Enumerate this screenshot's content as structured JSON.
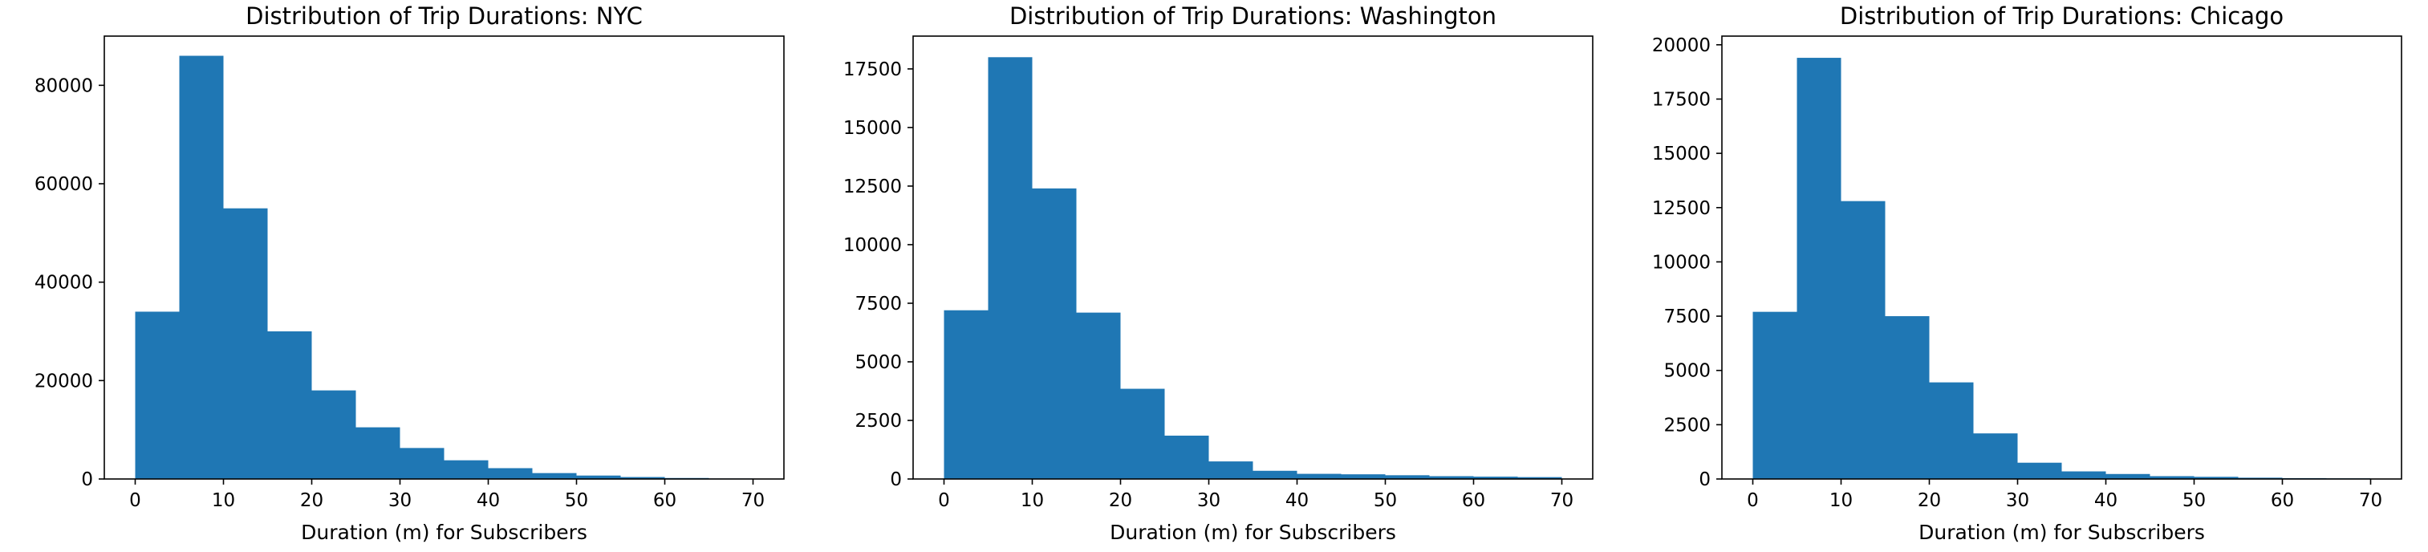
{
  "chart_data": [
    {
      "type": "bar",
      "title": "Distribution of Trip Durations: NYC",
      "xlabel": "Duration (m) for Subscribers",
      "ylabel": "",
      "bin_edges": [
        0,
        5,
        10,
        15,
        20,
        25,
        30,
        35,
        40,
        45,
        50,
        55,
        60,
        65,
        70
      ],
      "values": [
        34000,
        86000,
        55000,
        30000,
        18000,
        10500,
        6300,
        3800,
        2200,
        1200,
        700,
        400,
        200,
        100
      ],
      "xlim": [
        -3.5,
        73.5
      ],
      "ylim": [
        0,
        90000
      ],
      "xticks": [
        0,
        10,
        20,
        30,
        40,
        50,
        60,
        70
      ],
      "yticks": [
        0,
        20000,
        40000,
        60000,
        80000
      ],
      "color": "#1f77b4",
      "grid": false
    },
    {
      "type": "bar",
      "title": "Distribution of Trip Durations: Washington",
      "xlabel": "Duration (m) for Subscribers",
      "ylabel": "",
      "bin_edges": [
        0,
        5,
        10,
        15,
        20,
        25,
        30,
        35,
        40,
        45,
        50,
        55,
        60,
        65,
        70
      ],
      "values": [
        7200,
        18000,
        12400,
        7100,
        3850,
        1850,
        750,
        350,
        220,
        200,
        160,
        120,
        100,
        80
      ],
      "xlim": [
        -3.5,
        73.5
      ],
      "ylim": [
        0,
        18900
      ],
      "xticks": [
        0,
        10,
        20,
        30,
        40,
        50,
        60,
        70
      ],
      "yticks": [
        0,
        2500,
        5000,
        7500,
        10000,
        12500,
        15000,
        17500
      ],
      "color": "#1f77b4",
      "grid": false
    },
    {
      "type": "bar",
      "title": "Distribution of Trip Durations: Chicago",
      "xlabel": "Duration (m) for Subscribers",
      "ylabel": "",
      "bin_edges": [
        0,
        5,
        10,
        15,
        20,
        25,
        30,
        35,
        40,
        45,
        50,
        55,
        60,
        65,
        70
      ],
      "values": [
        7700,
        19400,
        12800,
        7500,
        4450,
        2100,
        750,
        350,
        230,
        130,
        100,
        60,
        40,
        30
      ],
      "xlim": [
        -3.5,
        73.5
      ],
      "ylim": [
        0,
        20400
      ],
      "xticks": [
        0,
        10,
        20,
        30,
        40,
        50,
        60,
        70
      ],
      "yticks": [
        0,
        2500,
        5000,
        7500,
        10000,
        12500,
        15000,
        17500,
        20000
      ],
      "color": "#1f77b4",
      "grid": false
    }
  ]
}
